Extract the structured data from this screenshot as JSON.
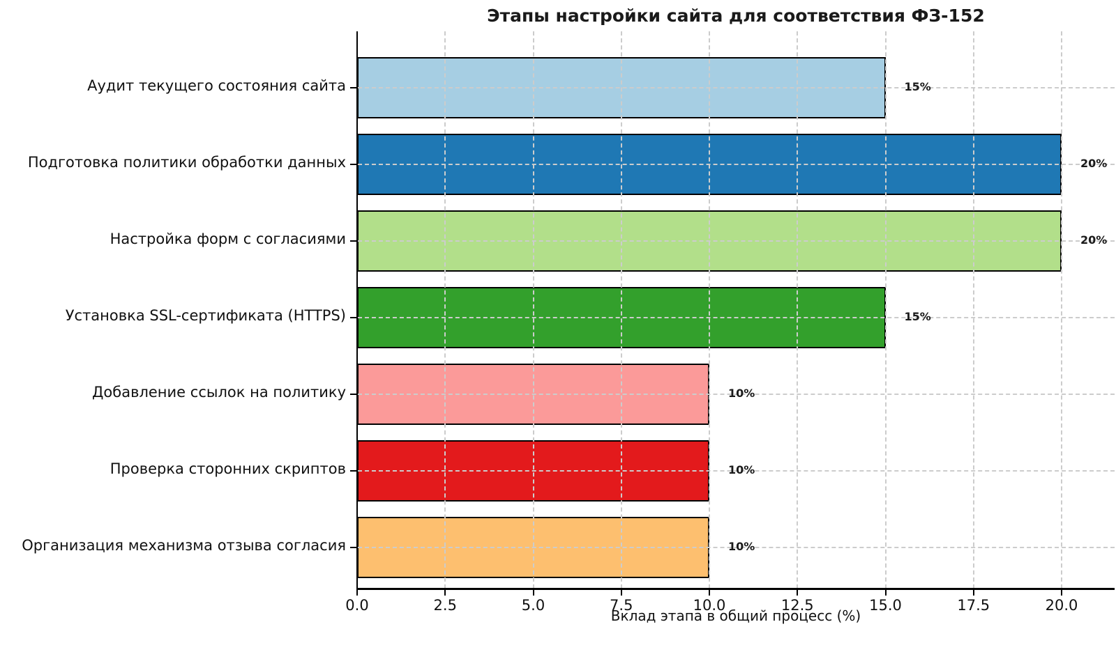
{
  "chart_data": {
    "type": "bar",
    "orientation": "horizontal",
    "title": "Этапы настройки сайта для соответствия ФЗ-152",
    "xlabel": "Вклад этапа в общий процесс (%)",
    "ylabel": "",
    "categories": [
      "Аудит текущего состояния сайта",
      "Подготовка политики обработки данных",
      "Настройка форм с согласиями",
      "Установка SSL-сертификата (HTTPS)",
      "Добавление ссылок на политику",
      "Проверка сторонних скриптов",
      "Организация механизма отзыва согласия"
    ],
    "values": [
      15,
      20,
      20,
      15,
      10,
      10,
      10
    ],
    "value_labels": [
      "15%",
      "20%",
      "20%",
      "15%",
      "10%",
      "10%",
      "10%"
    ],
    "bar_colors": [
      "#a6cee3",
      "#1f78b4",
      "#b2df8a",
      "#33a02c",
      "#fb9a99",
      "#e31a1c",
      "#fdbf6f"
    ],
    "bar_edge_color": "#000000",
    "xticks": [
      0,
      2.5,
      5,
      7.5,
      10,
      12.5,
      15,
      17.5,
      20
    ],
    "xtick_labels": [
      "0.0",
      "2.5",
      "5.0",
      "7.5",
      "10.0",
      "12.5",
      "15.0",
      "17.5",
      "20.0"
    ],
    "xlim": [
      0,
      21.5
    ],
    "grid": true,
    "grid_style": "dashed",
    "legend": "none"
  }
}
